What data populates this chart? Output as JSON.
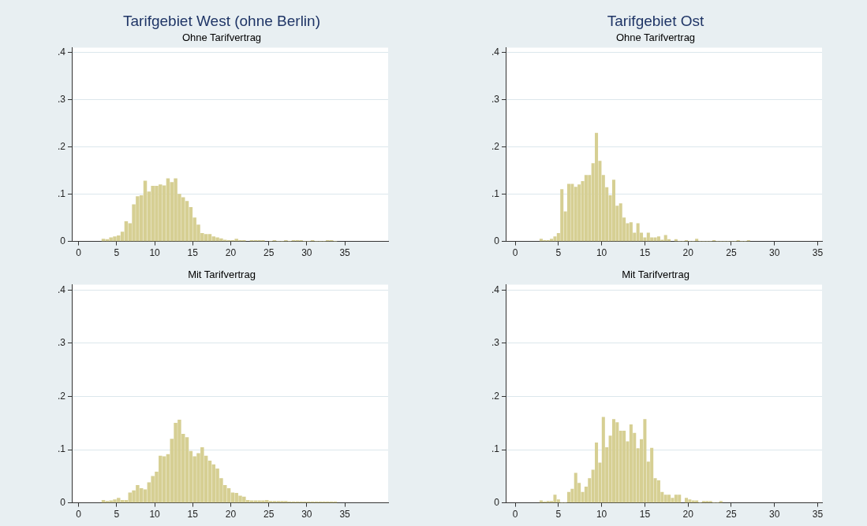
{
  "chart_data": [
    {
      "type": "histogram",
      "title": "Tarifgebiet West (ohne Berlin)",
      "subtitle": "Ohne Tarifvertrag",
      "color": "#d6cf93",
      "grid": "y",
      "xlim": [
        -0.9,
        40.7
      ],
      "xticks": [
        0,
        5,
        10,
        15,
        20,
        25,
        30,
        35
      ],
      "ylim": [
        0,
        0.41
      ],
      "yticks": [
        {
          "value": 0,
          "label": "0"
        },
        {
          "value": 0.1,
          "label": ".1"
        },
        {
          "value": 0.2,
          "label": ".2"
        },
        {
          "value": 0.3,
          "label": ".3"
        },
        {
          "value": 0.4,
          "label": ".4"
        }
      ],
      "bins": [
        3,
        3.5,
        4,
        4.5,
        5,
        5.5,
        6,
        6.5,
        7,
        7.5,
        8,
        8.5,
        9,
        9.5,
        10,
        10.5,
        11,
        11.5,
        12,
        12.5,
        13,
        13.5,
        14,
        14.5,
        15,
        15.5,
        16,
        16.5,
        17,
        17.5,
        18,
        18.5,
        19,
        19.5,
        20,
        20.5,
        21,
        21.5,
        22,
        22.5,
        23,
        23.5,
        24,
        24.5,
        25,
        25.5,
        26,
        26.5,
        27,
        27.5,
        28,
        28.5,
        29,
        29.5,
        30,
        30.5,
        31,
        31.5,
        32,
        32.5,
        33,
        33.5,
        34
      ],
      "values": [
        0.005,
        0.004,
        0.008,
        0.01,
        0.012,
        0.02,
        0.042,
        0.038,
        0.078,
        0.095,
        0.097,
        0.128,
        0.105,
        0.117,
        0.117,
        0.12,
        0.118,
        0.133,
        0.125,
        0.133,
        0.1,
        0.093,
        0.085,
        0.072,
        0.05,
        0.035,
        0.017,
        0.015,
        0.015,
        0.01,
        0.008,
        0.006,
        0.003,
        0.002,
        0.002,
        0.005,
        0.002,
        0.002,
        null,
        0.002,
        0.002,
        0.002,
        0.002,
        null,
        0,
        0.002,
        0,
        0,
        0.002,
        0,
        0.002,
        0.002,
        0.002,
        0,
        0,
        0.002,
        0,
        0,
        0,
        0.002,
        0.002,
        0
      ]
    },
    {
      "type": "histogram",
      "title": "Tarifgebiet Ost",
      "subtitle": "Ohne Tarifvertrag",
      "color": "#d6cf93",
      "grid": "y",
      "xlim": [
        -1.1,
        35.5
      ],
      "xticks": [
        0,
        5,
        10,
        15,
        20,
        25,
        30,
        35
      ],
      "ylim": [
        0,
        0.41
      ],
      "yticks": [
        {
          "value": 0,
          "label": "0"
        },
        {
          "value": 0.1,
          "label": ".1"
        },
        {
          "value": 0.2,
          "label": ".2"
        },
        {
          "value": 0.3,
          "label": ".3"
        },
        {
          "value": 0.4,
          "label": ".4"
        }
      ],
      "bins": [
        2.8,
        3.2,
        3.6,
        4.0,
        4.4,
        4.8,
        5.2,
        5.6,
        6.0,
        6.4,
        6.8,
        7.2,
        7.6,
        8.0,
        8.4,
        8.8,
        9.2,
        9.6,
        10.0,
        10.4,
        10.8,
        11.2,
        11.6,
        12.0,
        12.4,
        12.8,
        13.2,
        13.6,
        14.0,
        14.4,
        14.8,
        15.2,
        15.6,
        16.0,
        16.4,
        16.8,
        17.2,
        17.6,
        18.0,
        18.4,
        18.8,
        19.2,
        19.6,
        20.0,
        20.4,
        20.8,
        21.2,
        21.6,
        22.0,
        22.4,
        22.8,
        23.2,
        23.6,
        24.0,
        24.4,
        24.8,
        25.2,
        25.6,
        26.0,
        26.4,
        26.8,
        27.2
      ],
      "values": [
        0.005,
        0.002,
        0.002,
        0.005,
        0.01,
        0.017,
        0.11,
        0.063,
        0.121,
        0.121,
        0.115,
        0.12,
        0.127,
        0.14,
        0.14,
        0.165,
        0.229,
        0.17,
        0.14,
        0.114,
        0.097,
        0.13,
        0.075,
        0.08,
        0.05,
        0.038,
        0.04,
        0.018,
        0.038,
        0.018,
        0.008,
        0.018,
        0.008,
        0.008,
        0.01,
        0.003,
        0.013,
        0.004,
        null,
        0.004,
        0,
        0,
        0.002,
        0,
        0,
        0.005,
        0,
        0,
        0,
        0,
        0.002,
        0,
        0,
        0,
        0,
        0,
        0,
        0.002,
        0,
        0,
        0.002
      ]
    },
    {
      "type": "histogram",
      "title": "Mit Tarifvertrag",
      "color": "#d6cf93",
      "grid": "y",
      "xlim": [
        -0.9,
        40.7
      ],
      "xticks": [
        0,
        5,
        10,
        15,
        20,
        25,
        30,
        35
      ],
      "ylim": [
        0,
        0.41
      ],
      "yticks": [
        {
          "value": 0,
          "label": "0"
        },
        {
          "value": 0.1,
          "label": ".1"
        },
        {
          "value": 0.2,
          "label": ".2"
        },
        {
          "value": 0.3,
          "label": ".3"
        },
        {
          "value": 0.4,
          "label": ".4"
        }
      ],
      "bins": [
        3,
        3.5,
        4,
        4.5,
        5,
        5.5,
        6,
        6.5,
        7,
        7.5,
        8,
        8.5,
        9,
        9.5,
        10,
        10.5,
        11,
        11.5,
        12,
        12.5,
        13,
        13.5,
        14,
        14.5,
        15,
        15.5,
        16,
        16.5,
        17,
        17.5,
        18,
        18.5,
        19,
        19.5,
        20,
        20.5,
        21,
        21.5,
        22,
        22.5,
        23,
        23.5,
        24,
        24.5,
        25,
        25.5,
        26,
        26.5,
        27,
        27.5,
        28,
        28.5,
        29,
        29.5,
        30,
        30.5,
        31,
        31.5,
        32,
        32.5,
        33,
        33.5,
        34
      ],
      "values": [
        0.005,
        0.003,
        0.004,
        0.006,
        0.009,
        0.005,
        0.005,
        0.019,
        0.023,
        0.033,
        0.027,
        0.025,
        0.038,
        0.05,
        0.058,
        0.088,
        0.087,
        0.091,
        0.12,
        0.15,
        0.156,
        0.129,
        0.123,
        0.097,
        0.087,
        0.093,
        0.104,
        0.088,
        0.079,
        0.072,
        0.064,
        0.046,
        0.033,
        0.027,
        0.019,
        0.018,
        0.013,
        0.011,
        0.005,
        0.004,
        0.004,
        0.004,
        0.004,
        0.005,
        0.003,
        0.003,
        0.003,
        0.003,
        0.003,
        0.002,
        0.002,
        0.002,
        0.002,
        0.002,
        0.002,
        0.002,
        0.002,
        0.002,
        0.002,
        0.002,
        0.002,
        0.002
      ]
    },
    {
      "type": "histogram",
      "title": "Mit Tarifvertrag",
      "color": "#d6cf93",
      "grid": "y",
      "xlim": [
        -1.1,
        35.5
      ],
      "xticks": [
        0,
        5,
        10,
        15,
        20,
        25,
        30,
        35
      ],
      "ylim": [
        0,
        0.41
      ],
      "yticks": [
        {
          "value": 0,
          "label": "0"
        },
        {
          "value": 0.1,
          "label": ".1"
        },
        {
          "value": 0.2,
          "label": ".2"
        },
        {
          "value": 0.3,
          "label": ".3"
        },
        {
          "value": 0.4,
          "label": ".4"
        }
      ],
      "bins": [
        2.8,
        3.2,
        3.6,
        4.0,
        4.4,
        4.8,
        5.2,
        5.6,
        6.0,
        6.4,
        6.8,
        7.2,
        7.6,
        8.0,
        8.4,
        8.8,
        9.2,
        9.6,
        10.0,
        10.4,
        10.8,
        11.2,
        11.6,
        12.0,
        12.4,
        12.8,
        13.2,
        13.6,
        14.0,
        14.4,
        14.8,
        15.2,
        15.6,
        16.0,
        16.4,
        16.8,
        17.2,
        17.6,
        18.0,
        18.4,
        18.8,
        19.2,
        19.6,
        20.0,
        20.4,
        20.8,
        21.2,
        21.6,
        22.0,
        22.4,
        22.8,
        23.2,
        23.6,
        24.0
      ],
      "values": [
        0.004,
        0.002,
        0.003,
        0.003,
        0.015,
        0.006,
        0,
        0,
        0.02,
        0.026,
        0.056,
        0.037,
        0.02,
        0.03,
        0.046,
        0.062,
        0.113,
        0.075,
        0.161,
        0.104,
        0.126,
        0.157,
        0.151,
        0.135,
        0.135,
        0.115,
        0.147,
        0.131,
        0.102,
        0.119,
        0.157,
        0.077,
        0.103,
        0.046,
        0.042,
        0.02,
        0.015,
        0.015,
        0.009,
        0.015,
        0.015,
        null,
        0.009,
        0.006,
        0.004,
        0.004,
        0,
        0.003,
        0.003,
        0.003,
        0,
        0,
        0.003
      ]
    }
  ]
}
